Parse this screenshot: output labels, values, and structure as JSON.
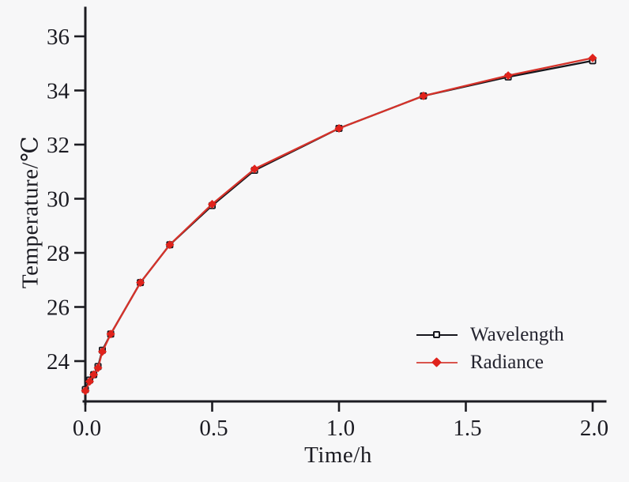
{
  "figure": {
    "background": "#f7f7f8",
    "axis_color": "#1c1c22",
    "text_color": "#1b1b22"
  },
  "chart_data": {
    "type": "line",
    "title": "",
    "xlabel": "Time/h",
    "ylabel": "Temperature/℃",
    "xlim": [
      0,
      2.05
    ],
    "ylim": [
      22.5,
      37
    ],
    "x_ticks": [
      0.0,
      0.5,
      1.0,
      1.5,
      2.0
    ],
    "x_tick_labels": [
      "0.0",
      "0.5",
      "1.0",
      "1.5",
      "2.0"
    ],
    "y_ticks": [
      24,
      26,
      28,
      30,
      32,
      34,
      36
    ],
    "y_tick_labels": [
      "24",
      "26",
      "28",
      "30",
      "32",
      "34",
      "36"
    ],
    "grid": false,
    "legend_position": "inside-lower-right",
    "series": [
      {
        "name": "Wavelength",
        "color": "#16161c",
        "marker": "open-square",
        "x": [
          0.0,
          0.017,
          0.033,
          0.05,
          0.067,
          0.1,
          0.217,
          0.333,
          0.5,
          0.667,
          1.0,
          1.333,
          1.667,
          2.0
        ],
        "y": [
          22.95,
          23.3,
          23.5,
          23.8,
          24.4,
          25.0,
          26.9,
          28.3,
          29.75,
          31.05,
          32.6,
          33.8,
          34.5,
          35.1
        ]
      },
      {
        "name": "Radiance",
        "color": "#d6322a",
        "marker": "filled-diamond",
        "x": [
          0.0,
          0.017,
          0.033,
          0.05,
          0.067,
          0.1,
          0.217,
          0.333,
          0.5,
          0.667,
          1.0,
          1.333,
          1.667,
          2.0
        ],
        "y": [
          22.9,
          23.25,
          23.5,
          23.75,
          24.35,
          25.0,
          26.9,
          28.3,
          29.8,
          31.1,
          32.6,
          33.8,
          34.55,
          35.2
        ]
      }
    ],
    "marker_colors": {
      "Wavelength": "#16161c",
      "Radiance": "#e0231c"
    }
  }
}
